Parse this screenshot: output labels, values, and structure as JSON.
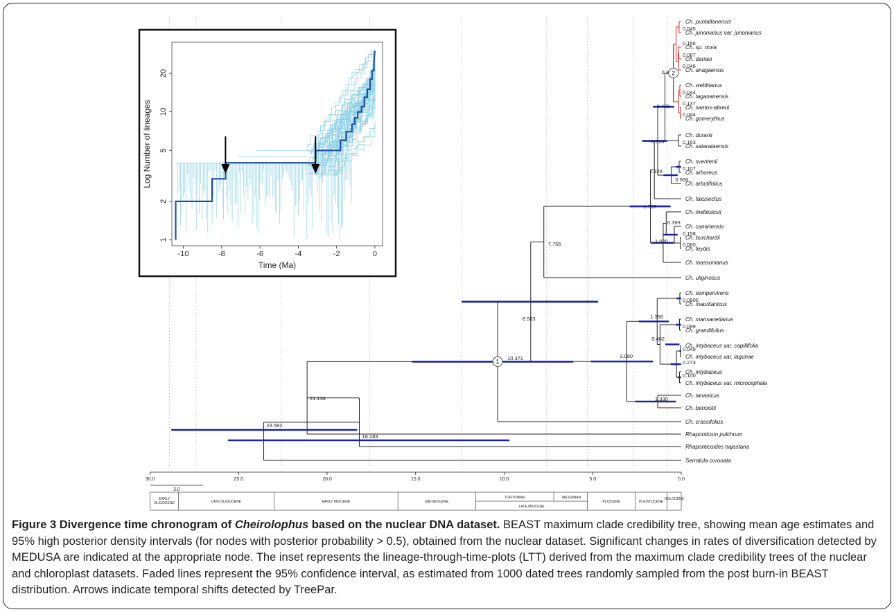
{
  "tree": {
    "node_labels": [
      {
        "id": "n_pj",
        "text": "0.045"
      },
      {
        "id": "n_nova",
        "text": "0.166"
      },
      {
        "id": "n_dar",
        "text": "0.087"
      },
      {
        "id": "n_ana",
        "text": "0.046"
      },
      {
        "id": "n_can3",
        "text": "0.289"
      },
      {
        "id": "n_tag",
        "text": "0.044"
      },
      {
        "id": "n_sa",
        "text": "0.137"
      },
      {
        "id": "n_gom",
        "text": "0.044"
      },
      {
        "id": "n_rc",
        "text": "0.436"
      },
      {
        "id": "n_ds",
        "text": "0.163"
      },
      {
        "id": "n_dur",
        "text": "0.918"
      },
      {
        "id": "n_sa2",
        "text": "0.107"
      },
      {
        "id": "n_sva",
        "text": "0.566"
      },
      {
        "id": "n_g2",
        "text": "1.326"
      },
      {
        "id": "n_big",
        "text": "1.737"
      },
      {
        "id": "n_can",
        "text": "0.393"
      },
      {
        "id": "n_bt",
        "text": "0.158"
      },
      {
        "id": "n_bt2",
        "text": "0.060"
      },
      {
        "id": "n_mcbt",
        "text": "1.020"
      },
      {
        "id": "n_macaro",
        "text": "7.755"
      },
      {
        "id": "n_sm",
        "text": "0.0805"
      },
      {
        "id": "n_mg",
        "text": "0.099"
      },
      {
        "id": "n_mmg",
        "text": "1.356"
      },
      {
        "id": "n_int",
        "text": "0.462"
      },
      {
        "id": "n_cl",
        "text": "0.049"
      },
      {
        "id": "n_cli",
        "text": "0.273"
      },
      {
        "id": "n_im",
        "text": "0.100"
      },
      {
        "id": "n_tb",
        "text": "1.330"
      },
      {
        "id": "n_afr",
        "text": "3.080"
      },
      {
        "id": "n_main",
        "text": "8.503"
      },
      {
        "id": "n_crown",
        "text": "10.371"
      },
      {
        "id": "n_out1",
        "text": "21.134"
      },
      {
        "id": "n_root",
        "text": "23.582"
      },
      {
        "id": "n_rh",
        "text": "18.183"
      }
    ],
    "tips": [
      {
        "name": "Ch. puntallanensis",
        "red": true
      },
      {
        "name": "Ch. junonianus var. junonianus",
        "red": true
      },
      {
        "name": "Ch. sp. nova",
        "red": true
      },
      {
        "name": "Ch. dariasi",
        "red": true
      },
      {
        "name": "Ch. anagaensis",
        "red": true
      },
      {
        "name": "Ch. webbianus",
        "red": true
      },
      {
        "name": "Ch. tagananensis",
        "red": true
      },
      {
        "name": "Ch. santos-abreui",
        "red": true
      },
      {
        "name": "Ch. gomerythus",
        "red": true
      },
      {
        "name": "Ch. duranii",
        "red": false
      },
      {
        "name": "Ch. satarataensis",
        "red": false
      },
      {
        "name": "Ch. sventenii",
        "red": false
      },
      {
        "name": "Ch. arboreus",
        "red": false
      },
      {
        "name": "Ch. arbutifolius",
        "red": false
      },
      {
        "name": "Ch. falcisectus",
        "red": false
      },
      {
        "name": "Ch. metlesicsii",
        "red": false
      },
      {
        "name": "Ch. canariensis",
        "red": false
      },
      {
        "name": "Ch. burchardii",
        "red": false
      },
      {
        "name": "Ch. teydis",
        "red": false
      },
      {
        "name": "Ch. massonianus",
        "red": false
      },
      {
        "name": "Ch. uliginosus",
        "red": false
      },
      {
        "name": "Ch. sempervirens",
        "red": false
      },
      {
        "name": "Ch. mauritanicus",
        "red": false
      },
      {
        "name": "Ch. mansanetianus",
        "red": false
      },
      {
        "name": "Ch. grandifolius",
        "red": false
      },
      {
        "name": "Ch. intybaceus var. capillifolia",
        "red": false
      },
      {
        "name": "Ch. intybaceus var. lagunae",
        "red": false
      },
      {
        "name": "Ch. intybaceus",
        "red": false
      },
      {
        "name": "Ch. intybaceus var. microcephala",
        "red": false
      },
      {
        "name": "Ch. tananicus",
        "red": false
      },
      {
        "name": "Ch. benoistii",
        "red": false
      },
      {
        "name": "Ch. crassifolius",
        "red": false
      },
      {
        "name": "Rhaponticum pulchrum",
        "red": false
      },
      {
        "name": "Rhaponticoides hajastana",
        "red": false
      },
      {
        "name": "Serratula coronata",
        "red": false
      }
    ],
    "shift_markers": [
      "1",
      "2"
    ],
    "time_axis": {
      "ticks": [
        "30.0",
        "25.0",
        "20.0",
        "15.0",
        "10.0",
        "5.0",
        "0.0"
      ]
    },
    "scale_bar": "3.0",
    "epochs": [
      {
        "label": "EARLY OLIGOCENE"
      },
      {
        "label": "LATE OLIGOCENE"
      },
      {
        "label": "EARLY MIOCENE"
      },
      {
        "label": "MID MIOCENE"
      },
      {
        "label": "TORTONIAN"
      },
      {
        "label": "MESSINIAN"
      },
      {
        "label": "LATE MIOCENE"
      },
      {
        "label": "PLIOCENE"
      },
      {
        "label": "PLEISTOCENE"
      },
      {
        "label": "HOLOCENE"
      }
    ],
    "colors": {
      "hpd_bar": "#1a22a8",
      "red_clade": "#e01e1e",
      "ltt_mean": "#1f4fa0",
      "ltt_ci": "#8cd0e4"
    }
  },
  "chart_data": {
    "type": "line",
    "title": "",
    "xlabel": "Time (Ma)",
    "ylabel": "Log Number of lineages",
    "log_y": true,
    "xlim": [
      -10.6,
      0.4
    ],
    "ylim": [
      0.9,
      35
    ],
    "x_ticks": [
      "-10",
      "-8",
      "-6",
      "-4",
      "-2",
      "0"
    ],
    "y_ticks": [
      "1",
      "2",
      "5",
      "10",
      "20"
    ],
    "series": [
      {
        "x": [
          -10.4,
          -10.4,
          -8.5,
          -8.5,
          -7.8,
          -7.8,
          -3.1,
          -3.1,
          -1.8,
          -1.8,
          -1.5,
          -1.5,
          -1.2,
          -1.2,
          -1.05,
          -1.05,
          -0.9,
          -0.9,
          -0.7,
          -0.7,
          -0.55,
          -0.55,
          -0.4,
          -0.4,
          -0.25,
          -0.25,
          -0.15,
          -0.15,
          -0.05,
          -0.05,
          0
        ],
        "y": [
          1,
          2,
          2,
          3,
          3,
          4,
          4,
          5,
          5,
          6,
          6,
          7,
          7,
          8,
          8,
          9,
          9,
          10,
          10,
          11,
          11,
          13,
          13,
          15,
          15,
          18,
          18,
          21,
          21,
          25,
          30
        ]
      }
    ],
    "annotations": [
      {
        "type": "arrow",
        "x": -7.8
      },
      {
        "type": "arrow",
        "x": -3.1
      }
    ]
  },
  "caption": {
    "fig_label": "Figure 3 Divergence time chronogram of ",
    "genus": "Cheirolophus",
    "title_rest": " based on the nuclear DNA dataset.",
    "body": " BEAST maximum clade credibility tree, showing mean age estimates and 95% high posterior density intervals (for nodes with posterior probability > 0.5), obtained from the nuclear dataset. Significant changes in rates of diversification detected by MEDUSA are indicated at the appropriate node. The inset represents the lineage-through-time-plots (LTT) derived from the maximum clade credibility trees of the nuclear and chloroplast datasets. Faded lines represent the 95% confidence interval, as estimated from 1000 dated trees randomly sampled from the post burn-in BEAST distribution. Arrows indicate temporal shifts detected by TreePar."
  }
}
